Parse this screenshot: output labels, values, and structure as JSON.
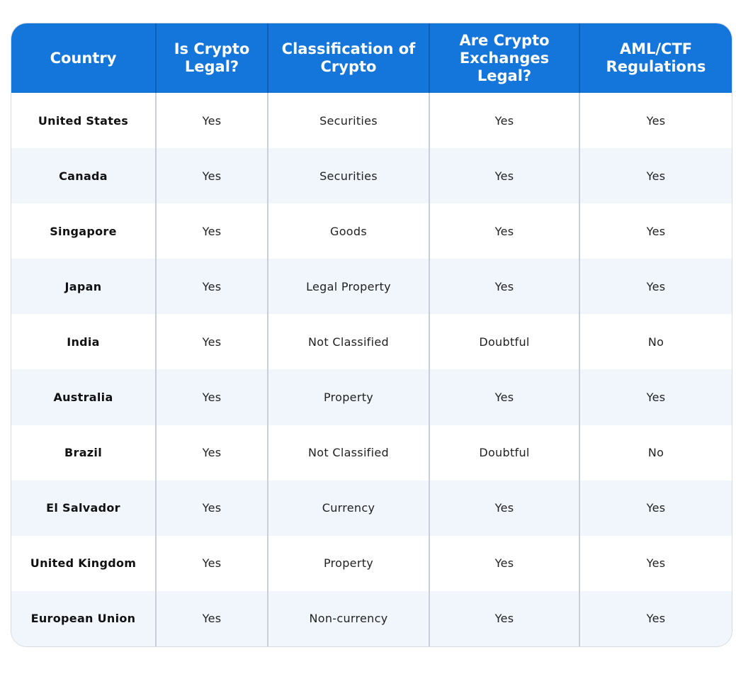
{
  "table": {
    "header_color": "#1475db",
    "columns": [
      "Country",
      "Is Crypto Legal?",
      "Classification of Crypto",
      "Are Crypto Exchanges Legal?",
      "AML/CTF Regulations"
    ],
    "rows": [
      {
        "country": "United States",
        "legal": "Yes",
        "classification": "Securities",
        "exchanges": "Yes",
        "aml": "Yes"
      },
      {
        "country": "Canada",
        "legal": "Yes",
        "classification": "Securities",
        "exchanges": "Yes",
        "aml": "Yes"
      },
      {
        "country": "Singapore",
        "legal": "Yes",
        "classification": "Goods",
        "exchanges": "Yes",
        "aml": "Yes"
      },
      {
        "country": "Japan",
        "legal": "Yes",
        "classification": "Legal Property",
        "exchanges": "Yes",
        "aml": "Yes"
      },
      {
        "country": "India",
        "legal": "Yes",
        "classification": "Not Classified",
        "exchanges": "Doubtful",
        "aml": "No"
      },
      {
        "country": "Australia",
        "legal": "Yes",
        "classification": "Property",
        "exchanges": "Yes",
        "aml": "Yes"
      },
      {
        "country": "Brazil",
        "legal": "Yes",
        "classification": "Not Classified",
        "exchanges": "Doubtful",
        "aml": "No"
      },
      {
        "country": "El Salvador",
        "legal": "Yes",
        "classification": "Currency",
        "exchanges": "Yes",
        "aml": "Yes"
      },
      {
        "country": "United Kingdom",
        "legal": "Yes",
        "classification": "Property",
        "exchanges": "Yes",
        "aml": "Yes"
      },
      {
        "country": "European Union",
        "legal": "Yes",
        "classification": "Non-currency",
        "exchanges": "Yes",
        "aml": "Yes"
      }
    ]
  }
}
